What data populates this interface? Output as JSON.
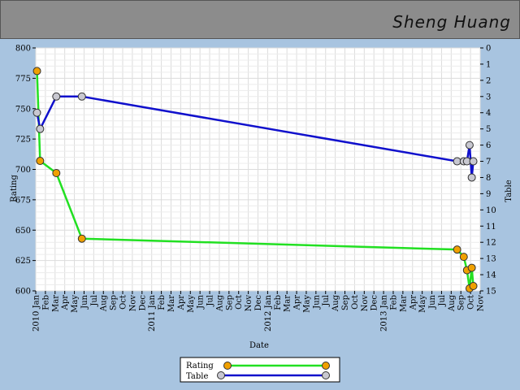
{
  "header": {
    "name": "Sheng Huang"
  },
  "chart_data": {
    "type": "line",
    "xlabel": "Date",
    "ylabel_left": "Rating",
    "ylabel_right": "Table",
    "ylim_left": [
      600,
      800
    ],
    "ylim_right": [
      0,
      15
    ],
    "yticks_left": [
      "600",
      "625",
      "650",
      "675",
      "700",
      "725",
      "750",
      "775",
      "800"
    ],
    "yticks_right": [
      "0",
      "1",
      "2",
      "3",
      "4",
      "5",
      "6",
      "7",
      "8",
      "9",
      "10",
      "11",
      "12",
      "13",
      "14",
      "15"
    ],
    "xticks": [
      "2010 Jan",
      "Feb",
      "Mar",
      "Apr",
      "May",
      "Jun",
      "Jul",
      "Aug",
      "Sep",
      "Oct",
      "Nov",
      "Dec",
      "2011 Jan",
      "Feb",
      "Mar",
      "Apr",
      "May",
      "Jun",
      "Jul",
      "Aug",
      "Sep",
      "Oct",
      "Nov",
      "Dec",
      "2012 Jan",
      "Feb",
      "Mar",
      "Apr",
      "May",
      "Jun",
      "Jul",
      "Aug",
      "Sep",
      "Oct",
      "Nov",
      "Dec",
      "2013 Jan",
      "Feb",
      "Mar",
      "Apr",
      "May",
      "Jun",
      "Jul",
      "Aug",
      "Sep",
      "Oct",
      "Nov"
    ],
    "grid": true,
    "legend_position": "bottom-center",
    "series": [
      {
        "name": "Rating",
        "axis": "left",
        "line_color": "#22e022",
        "marker_color": "#f0a000",
        "points": [
          [
            "2010-01-05",
            781
          ],
          [
            "2010-01-15",
            707
          ],
          [
            "2010-03-05",
            697
          ],
          [
            "2010-05-25",
            643
          ],
          [
            "2013-08-20",
            634
          ],
          [
            "2013-09-10",
            628
          ],
          [
            "2013-09-20",
            617
          ],
          [
            "2013-09-28",
            602
          ],
          [
            "2013-10-05",
            619
          ],
          [
            "2013-10-10",
            604
          ]
        ]
      },
      {
        "name": "Table",
        "axis": "right",
        "line_color": "#1010cc",
        "marker_color": "#c8c8d0",
        "points": [
          [
            "2010-01-05",
            4
          ],
          [
            "2010-01-15",
            5
          ],
          [
            "2010-03-05",
            3
          ],
          [
            "2010-05-25",
            3
          ],
          [
            "2013-08-20",
            7
          ],
          [
            "2013-09-10",
            7
          ],
          [
            "2013-09-20",
            7
          ],
          [
            "2013-09-28",
            6
          ],
          [
            "2013-10-05",
            8
          ],
          [
            "2013-10-10",
            7
          ]
        ]
      }
    ]
  }
}
